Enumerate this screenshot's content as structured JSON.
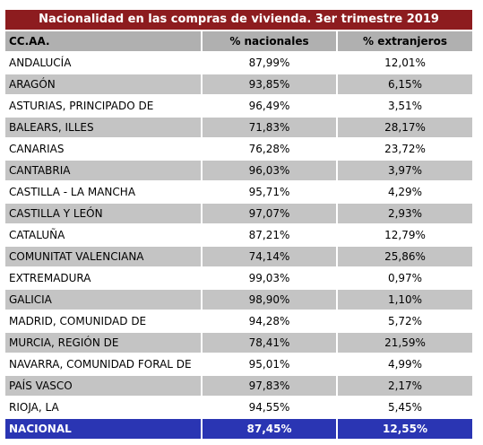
{
  "chart_data": {
    "type": "table",
    "title": "Nacionalidad en las compras de vivienda. 3er trimestre 2019",
    "columns": [
      "CC.AA.",
      "% nacionales",
      "% extranjeros"
    ],
    "rows": [
      {
        "region": "ANDALUCÍA",
        "nacionales": "87,99%",
        "extranjeros": "12,01%"
      },
      {
        "region": "ARAGÓN",
        "nacionales": "93,85%",
        "extranjeros": "6,15%"
      },
      {
        "region": "ASTURIAS, PRINCIPADO DE",
        "nacionales": "96,49%",
        "extranjeros": "3,51%"
      },
      {
        "region": "BALEARS, ILLES",
        "nacionales": "71,83%",
        "extranjeros": "28,17%"
      },
      {
        "region": "CANARIAS",
        "nacionales": "76,28%",
        "extranjeros": "23,72%"
      },
      {
        "region": "CANTABRIA",
        "nacionales": "96,03%",
        "extranjeros": "3,97%"
      },
      {
        "region": "CASTILLA - LA MANCHA",
        "nacionales": "95,71%",
        "extranjeros": "4,29%"
      },
      {
        "region": "CASTILLA Y LEÓN",
        "nacionales": "97,07%",
        "extranjeros": "2,93%"
      },
      {
        "region": "CATALUÑA",
        "nacionales": "87,21%",
        "extranjeros": "12,79%"
      },
      {
        "region": "COMUNITAT VALENCIANA",
        "nacionales": "74,14%",
        "extranjeros": "25,86%"
      },
      {
        "region": "EXTREMADURA",
        "nacionales": "99,03%",
        "extranjeros": "0,97%"
      },
      {
        "region": "GALICIA",
        "nacionales": "98,90%",
        "extranjeros": "1,10%"
      },
      {
        "region": "MADRID, COMUNIDAD DE",
        "nacionales": "94,28%",
        "extranjeros": "5,72%"
      },
      {
        "region": "MURCIA, REGIÓN DE",
        "nacionales": "78,41%",
        "extranjeros": "21,59%"
      },
      {
        "region": "NAVARRA, COMUNIDAD FORAL DE",
        "nacionales": "95,01%",
        "extranjeros": "4,99%"
      },
      {
        "region": "PAÍS VASCO",
        "nacionales": "97,83%",
        "extranjeros": "2,17%"
      },
      {
        "region": "RIOJA, LA",
        "nacionales": "94,55%",
        "extranjeros": "5,45%"
      }
    ],
    "total": {
      "region": "NACIONAL",
      "nacionales": "87,45%",
      "extranjeros": "12,55%"
    },
    "colors": {
      "title_bg": "#8d1c1f",
      "header_bg": "#b0b0b0",
      "stripe_bg": "#c4c4c4",
      "total_bg": "#2a35b3"
    }
  }
}
